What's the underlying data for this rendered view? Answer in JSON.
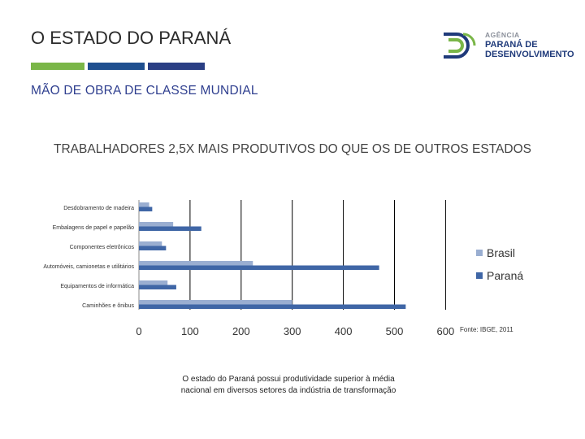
{
  "header": {
    "title": "O ESTADO DO PARANÁ",
    "subtitle": "MÃO DE OBRA DE CLASSE MUNDIAL",
    "stripes": [
      "#7ab648",
      "#1f4f8f",
      "#2a3f84"
    ]
  },
  "logo": {
    "line1": "AGÊNCIA",
    "line2": "PARANÁ DE",
    "line3": "DESENVOLVIMENTO",
    "icon": "agencia-parana-logo-icon"
  },
  "headline": "TRABALHADORES 2,5X MAIS PRODUTIVOS DO QUE OS DE OUTROS ESTADOS",
  "caption": {
    "line1": "O estado do Paraná possui produtividade superior à média",
    "line2": "nacional em diversos setores da indústria de transformação"
  },
  "source": "Fonte: IBGE, 2011",
  "chart_data": {
    "type": "bar",
    "orientation": "horizontal",
    "categories": [
      "Desdobramento de madeira",
      "Embalagens de papel e papelão",
      "Componentes eletrônicos",
      "Automóveis, camionetas e utilitários",
      "Equipamentos de informática",
      "Caminhões e ônibus"
    ],
    "series": [
      {
        "name": "Brasil",
        "color": "#9aaed1",
        "values": [
          20,
          67,
          45,
          223,
          56,
          300
        ]
      },
      {
        "name": "Paraná",
        "color": "#3f66a6",
        "values": [
          26,
          122,
          53,
          470,
          73,
          522
        ]
      }
    ],
    "xlim": [
      0,
      600
    ],
    "xticks": [
      "0",
      "100",
      "200",
      "300",
      "400",
      "500",
      "600"
    ],
    "legend_position": "right"
  }
}
